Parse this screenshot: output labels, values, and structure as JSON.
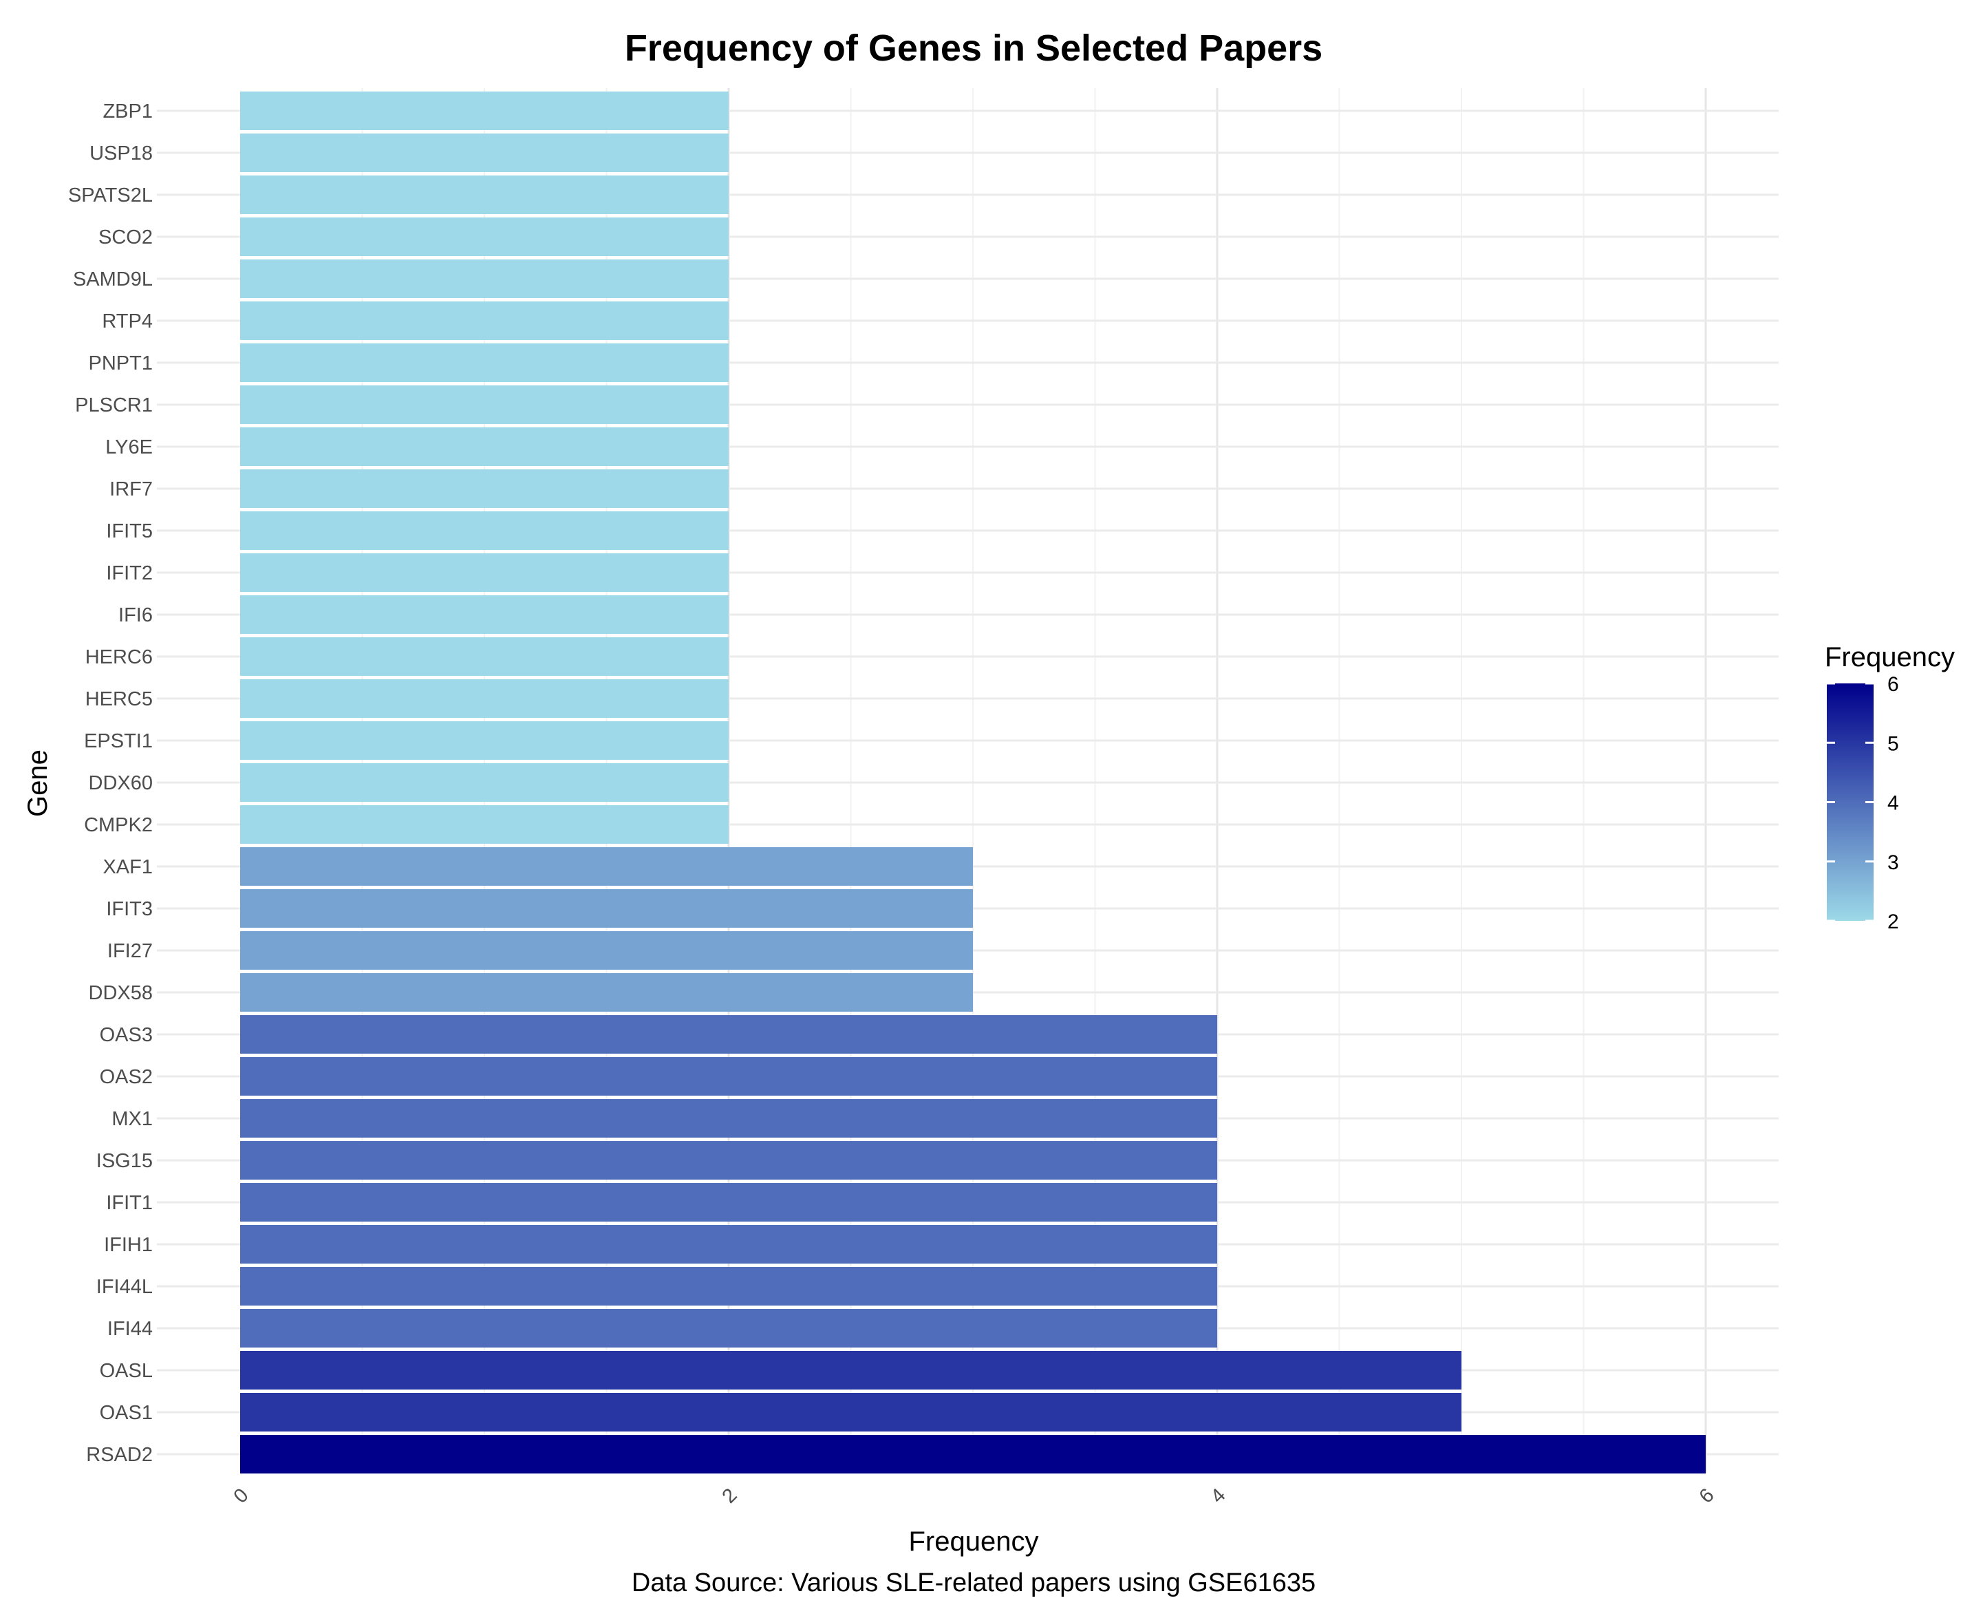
{
  "chart_data": {
    "type": "bar",
    "orientation": "horizontal",
    "title": "Frequency of Genes in Selected Papers",
    "xlabel": "Frequency",
    "ylabel": "Gene",
    "caption": "Data Source: Various SLE-related papers using GSE61635",
    "xlim": [
      0,
      6.3
    ],
    "x_ticks": [
      "0",
      "2",
      "4",
      "6"
    ],
    "x_tick_rotation": "45deg",
    "grid": true,
    "categories": [
      "RSAD2",
      "OAS1",
      "OASL",
      "IFI44",
      "IFI44L",
      "IFIH1",
      "IFIT1",
      "ISG15",
      "MX1",
      "OAS2",
      "OAS3",
      "DDX58",
      "IFI27",
      "IFIT3",
      "XAF1",
      "CMPK2",
      "DDX60",
      "EPSTI1",
      "HERC5",
      "HERC6",
      "IFI6",
      "IFIT2",
      "IFIT5",
      "IRF7",
      "LY6E",
      "PLSCR1",
      "PNPT1",
      "RTP4",
      "SAMD9L",
      "SCO2",
      "SPATS2L",
      "USP18",
      "ZBP1"
    ],
    "values": [
      6,
      5,
      5,
      4,
      4,
      4,
      4,
      4,
      4,
      4,
      4,
      3,
      3,
      3,
      3,
      2,
      2,
      2,
      2,
      2,
      2,
      2,
      2,
      2,
      2,
      2,
      2,
      2,
      2,
      2,
      2,
      2,
      2
    ],
    "color_scale": {
      "low": "#9dd9e8",
      "high": "#00008b",
      "range": [
        2,
        6
      ]
    },
    "legend": {
      "title": "Frequency",
      "ticks": [
        "2",
        "3",
        "4",
        "5",
        "6"
      ],
      "placement": "right"
    }
  }
}
